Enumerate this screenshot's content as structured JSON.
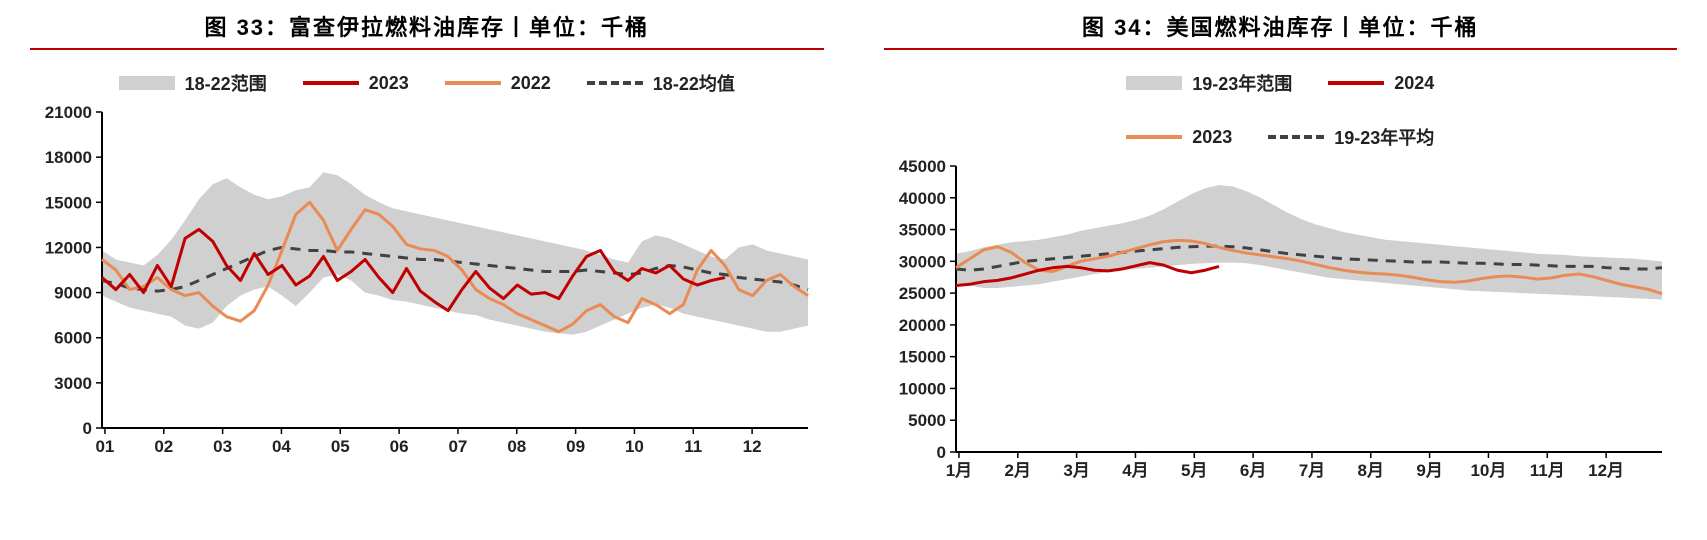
{
  "left": {
    "title": "图 33：富查伊拉燃料油库存丨单位：千桶",
    "title_fontsize": 22,
    "title_rule_color": "#c00000",
    "legend": {
      "range_label": "18-22范围",
      "series_a_label": "2023",
      "series_b_label": "2022",
      "mean_label": "18-22均值"
    },
    "chart": {
      "type": "line",
      "background_color": "#ffffff",
      "axis_color": "#000000",
      "tick_color": "#000000",
      "label_fontsize": 17,
      "range_fill": "#d0d0d0",
      "series_a_color": "#c00000",
      "series_b_color": "#e98b55",
      "mean_color": "#414141",
      "mean_dash": "10,8",
      "line_width": 3,
      "ylim": [
        0,
        21000
      ],
      "ytick_step": 3000,
      "x_labels": [
        "01",
        "02",
        "03",
        "04",
        "05",
        "06",
        "07",
        "08",
        "09",
        "10",
        "11",
        "12"
      ],
      "range_high": [
        11800,
        11200,
        11000,
        10800,
        11500,
        12500,
        13800,
        15200,
        16200,
        16600,
        16000,
        15500,
        15200,
        15400,
        15800,
        16000,
        17000,
        16800,
        16200,
        15500,
        15000,
        14600,
        14400,
        14200,
        14000,
        13800,
        13600,
        13400,
        13200,
        13000,
        12800,
        12600,
        12400,
        12200,
        12000,
        11800,
        11500,
        11200,
        11000,
        12400,
        12800,
        12600,
        12200,
        11800,
        11400,
        11200,
        12000,
        12200,
        11800,
        11600,
        11400,
        11200
      ],
      "range_low": [
        8800,
        8400,
        8000,
        7800,
        7600,
        7400,
        6800,
        6600,
        7000,
        8100,
        8800,
        9200,
        9400,
        8800,
        8100,
        9000,
        10000,
        10200,
        9800,
        9000,
        8800,
        8500,
        8400,
        8200,
        8000,
        7800,
        7600,
        7500,
        7200,
        7000,
        6800,
        6600,
        6400,
        6300,
        6200,
        6400,
        6800,
        7200,
        7600,
        8000,
        8200,
        8000,
        7600,
        7400,
        7200,
        7000,
        6800,
        6600,
        6400,
        6400,
        6600,
        6800
      ],
      "mean": [
        9800,
        9600,
        9300,
        9200,
        9100,
        9200,
        9400,
        9800,
        10200,
        10600,
        11000,
        11400,
        11800,
        12000,
        11900,
        11800,
        11800,
        11700,
        11700,
        11600,
        11500,
        11400,
        11300,
        11200,
        11200,
        11100,
        11000,
        10900,
        10800,
        10700,
        10600,
        10500,
        10400,
        10400,
        10400,
        10500,
        10400,
        10300,
        10200,
        10300,
        10600,
        10800,
        10700,
        10500,
        10300,
        10200,
        10000,
        9900,
        9800,
        9700,
        9500,
        9200
      ],
      "series_b": [
        11200,
        10500,
        9200,
        9400,
        10000,
        9200,
        8800,
        9000,
        8100,
        7400,
        7100,
        7800,
        9500,
        11800,
        14200,
        15000,
        13800,
        11800,
        13200,
        14500,
        14200,
        13400,
        12200,
        11900,
        11800,
        11400,
        10500,
        9200,
        8600,
        8200,
        7600,
        7200,
        6800,
        6400,
        6900,
        7800,
        8200,
        7400,
        7000,
        8600,
        8200,
        7600,
        8200,
        10500,
        11800,
        10800,
        9200,
        8800,
        9800,
        10200,
        9400,
        8800
      ],
      "series_a": [
        10000,
        9200,
        10200,
        9000,
        10800,
        9400,
        12600,
        13200,
        12400,
        10800,
        9800,
        11600,
        10200,
        10800,
        9500,
        10100,
        11400,
        9800,
        10400,
        11200,
        10000,
        9000,
        10600,
        9100,
        8400,
        7800,
        9200,
        10400,
        9300,
        8600,
        9500,
        8900,
        9000,
        8600,
        10100,
        11400,
        11800,
        10400,
        9800,
        10600,
        10300,
        10800,
        9900,
        9500,
        9800,
        10000
      ]
    }
  },
  "right": {
    "title": "图 34：美国燃料油库存丨单位：千桶",
    "title_fontsize": 22,
    "title_rule_color": "#c00000",
    "legend": {
      "range_label": "19-23年范围",
      "series_a_label": "2024",
      "series_b_label": "2023",
      "mean_label": "19-23年平均"
    },
    "chart": {
      "type": "line",
      "background_color": "#ffffff",
      "axis_color": "#000000",
      "tick_color": "#000000",
      "label_fontsize": 17,
      "range_fill": "#d0d0d0",
      "series_a_color": "#c00000",
      "series_b_color": "#e98b55",
      "mean_color": "#414141",
      "mean_dash": "10,8",
      "line_width": 3,
      "ylim": [
        0,
        45000
      ],
      "ytick_step": 5000,
      "x_labels": [
        "1月",
        "2月",
        "3月",
        "4月",
        "5月",
        "6月",
        "7月",
        "8月",
        "9月",
        "10月",
        "11月",
        "12月"
      ],
      "range_high": [
        31200,
        31600,
        32200,
        32600,
        33000,
        33200,
        33400,
        33800,
        34200,
        34800,
        35200,
        35600,
        36000,
        36500,
        37200,
        38200,
        39400,
        40600,
        41500,
        42000,
        41800,
        41000,
        40000,
        38800,
        37600,
        36600,
        35800,
        35200,
        34600,
        34200,
        33800,
        33400,
        33200,
        33000,
        32800,
        32600,
        32400,
        32200,
        32000,
        31800,
        31600,
        31400,
        31200,
        31100,
        31000,
        30800,
        30700,
        30600,
        30500,
        30400,
        30200,
        30000
      ],
      "range_low": [
        26600,
        26200,
        25800,
        25800,
        26000,
        26200,
        26400,
        26800,
        27200,
        27600,
        28000,
        28300,
        28600,
        28800,
        29000,
        29200,
        29400,
        29600,
        29700,
        29800,
        29800,
        29700,
        29400,
        29000,
        28600,
        28200,
        27800,
        27400,
        27200,
        27000,
        26800,
        26600,
        26400,
        26200,
        26000,
        25800,
        25600,
        25400,
        25300,
        25200,
        25100,
        25000,
        24900,
        24800,
        24700,
        24600,
        24500,
        24400,
        24300,
        24200,
        24100,
        24000
      ],
      "mean": [
        28800,
        28600,
        28800,
        29200,
        29600,
        30000,
        30200,
        30400,
        30600,
        30800,
        31000,
        31200,
        31400,
        31600,
        31800,
        32000,
        32200,
        32300,
        32400,
        32400,
        32300,
        32100,
        31800,
        31500,
        31200,
        31000,
        30800,
        30600,
        30400,
        30300,
        30200,
        30100,
        30000,
        29900,
        29900,
        29900,
        29800,
        29700,
        29700,
        29600,
        29500,
        29500,
        29400,
        29300,
        29200,
        29200,
        29200,
        29000,
        28900,
        28800,
        28800,
        29000
      ],
      "series_b": [
        29000,
        30400,
        31800,
        32300,
        31400,
        29800,
        28600,
        28400,
        29200,
        30000,
        30400,
        30800,
        31400,
        32000,
        32600,
        33100,
        33300,
        33200,
        32800,
        32200,
        31700,
        31300,
        31000,
        30700,
        30400,
        30000,
        29500,
        29000,
        28600,
        28300,
        28100,
        28000,
        27800,
        27500,
        27100,
        26800,
        26700,
        26900,
        27300,
        27600,
        27700,
        27500,
        27200,
        27400,
        27800,
        28000,
        27600,
        27000,
        26400,
        26000,
        25600,
        24900
      ],
      "series_a": [
        26200,
        26400,
        26800,
        27000,
        27400,
        28000,
        28600,
        29000,
        29200,
        29000,
        28600,
        28500,
        28800,
        29300,
        29800,
        29400,
        28600,
        28200,
        28600,
        29200
      ]
    }
  }
}
